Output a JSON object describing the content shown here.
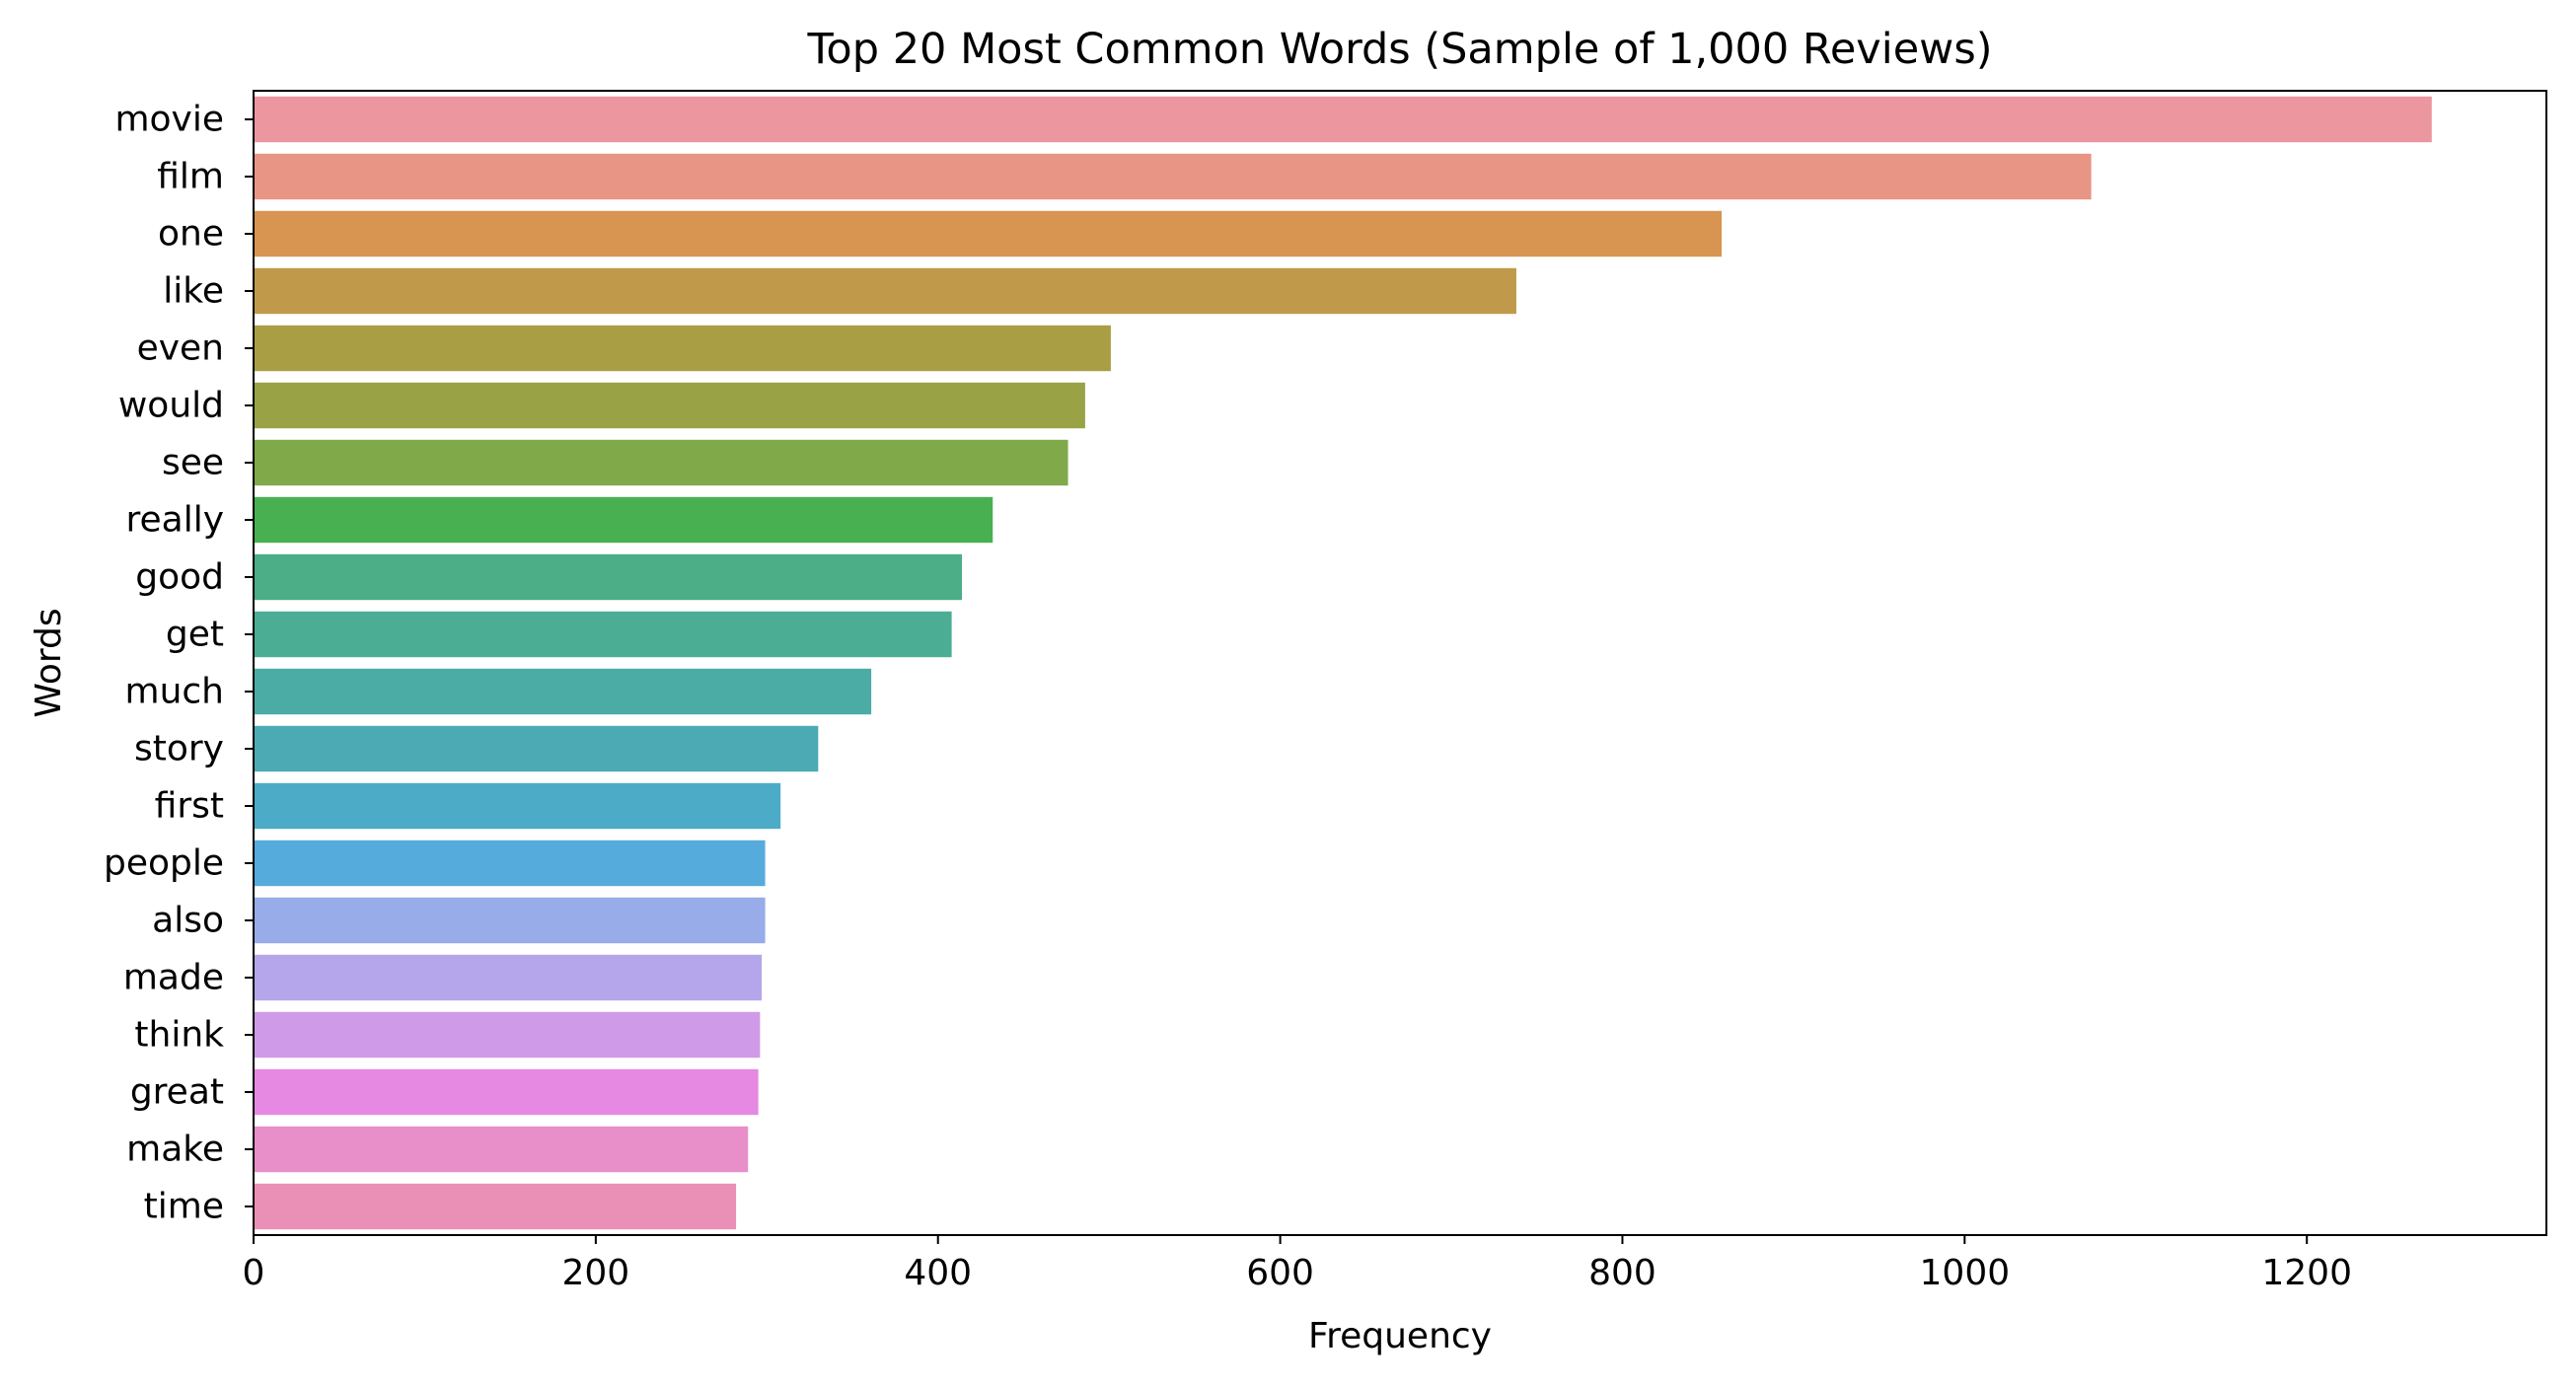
{
  "chart_data": {
    "type": "bar",
    "orientation": "horizontal",
    "title": "Top 20 Most Common Words (Sample of 1,000 Reviews)",
    "xlabel": "Frequency",
    "ylabel": "Words",
    "xlim": [
      0,
      1340
    ],
    "xticks": [
      0,
      200,
      400,
      600,
      800,
      1000,
      1200
    ],
    "grid": false,
    "legend": "none",
    "categories": [
      "movie",
      "film",
      "one",
      "like",
      "even",
      "would",
      "see",
      "really",
      "good",
      "get",
      "much",
      "story",
      "first",
      "people",
      "also",
      "made",
      "think",
      "great",
      "make",
      "time"
    ],
    "values": [
      1273,
      1074,
      858,
      738,
      501,
      486,
      476,
      432,
      414,
      408,
      361,
      330,
      308,
      299,
      299,
      297,
      296,
      295,
      289,
      282
    ],
    "colors": [
      "#ec96a0",
      "#e89585",
      "#d89451",
      "#c09a4a",
      "#aa9e45",
      "#9aa246",
      "#80a94a",
      "#48b051",
      "#4bae86",
      "#4bae94",
      "#4aaca5",
      "#4baab4",
      "#4cacc7",
      "#55abdc",
      "#97ace8",
      "#b5a6ec",
      "#cf9ae8",
      "#e689e3",
      "#e88fc9",
      "#ea90b6"
    ]
  }
}
